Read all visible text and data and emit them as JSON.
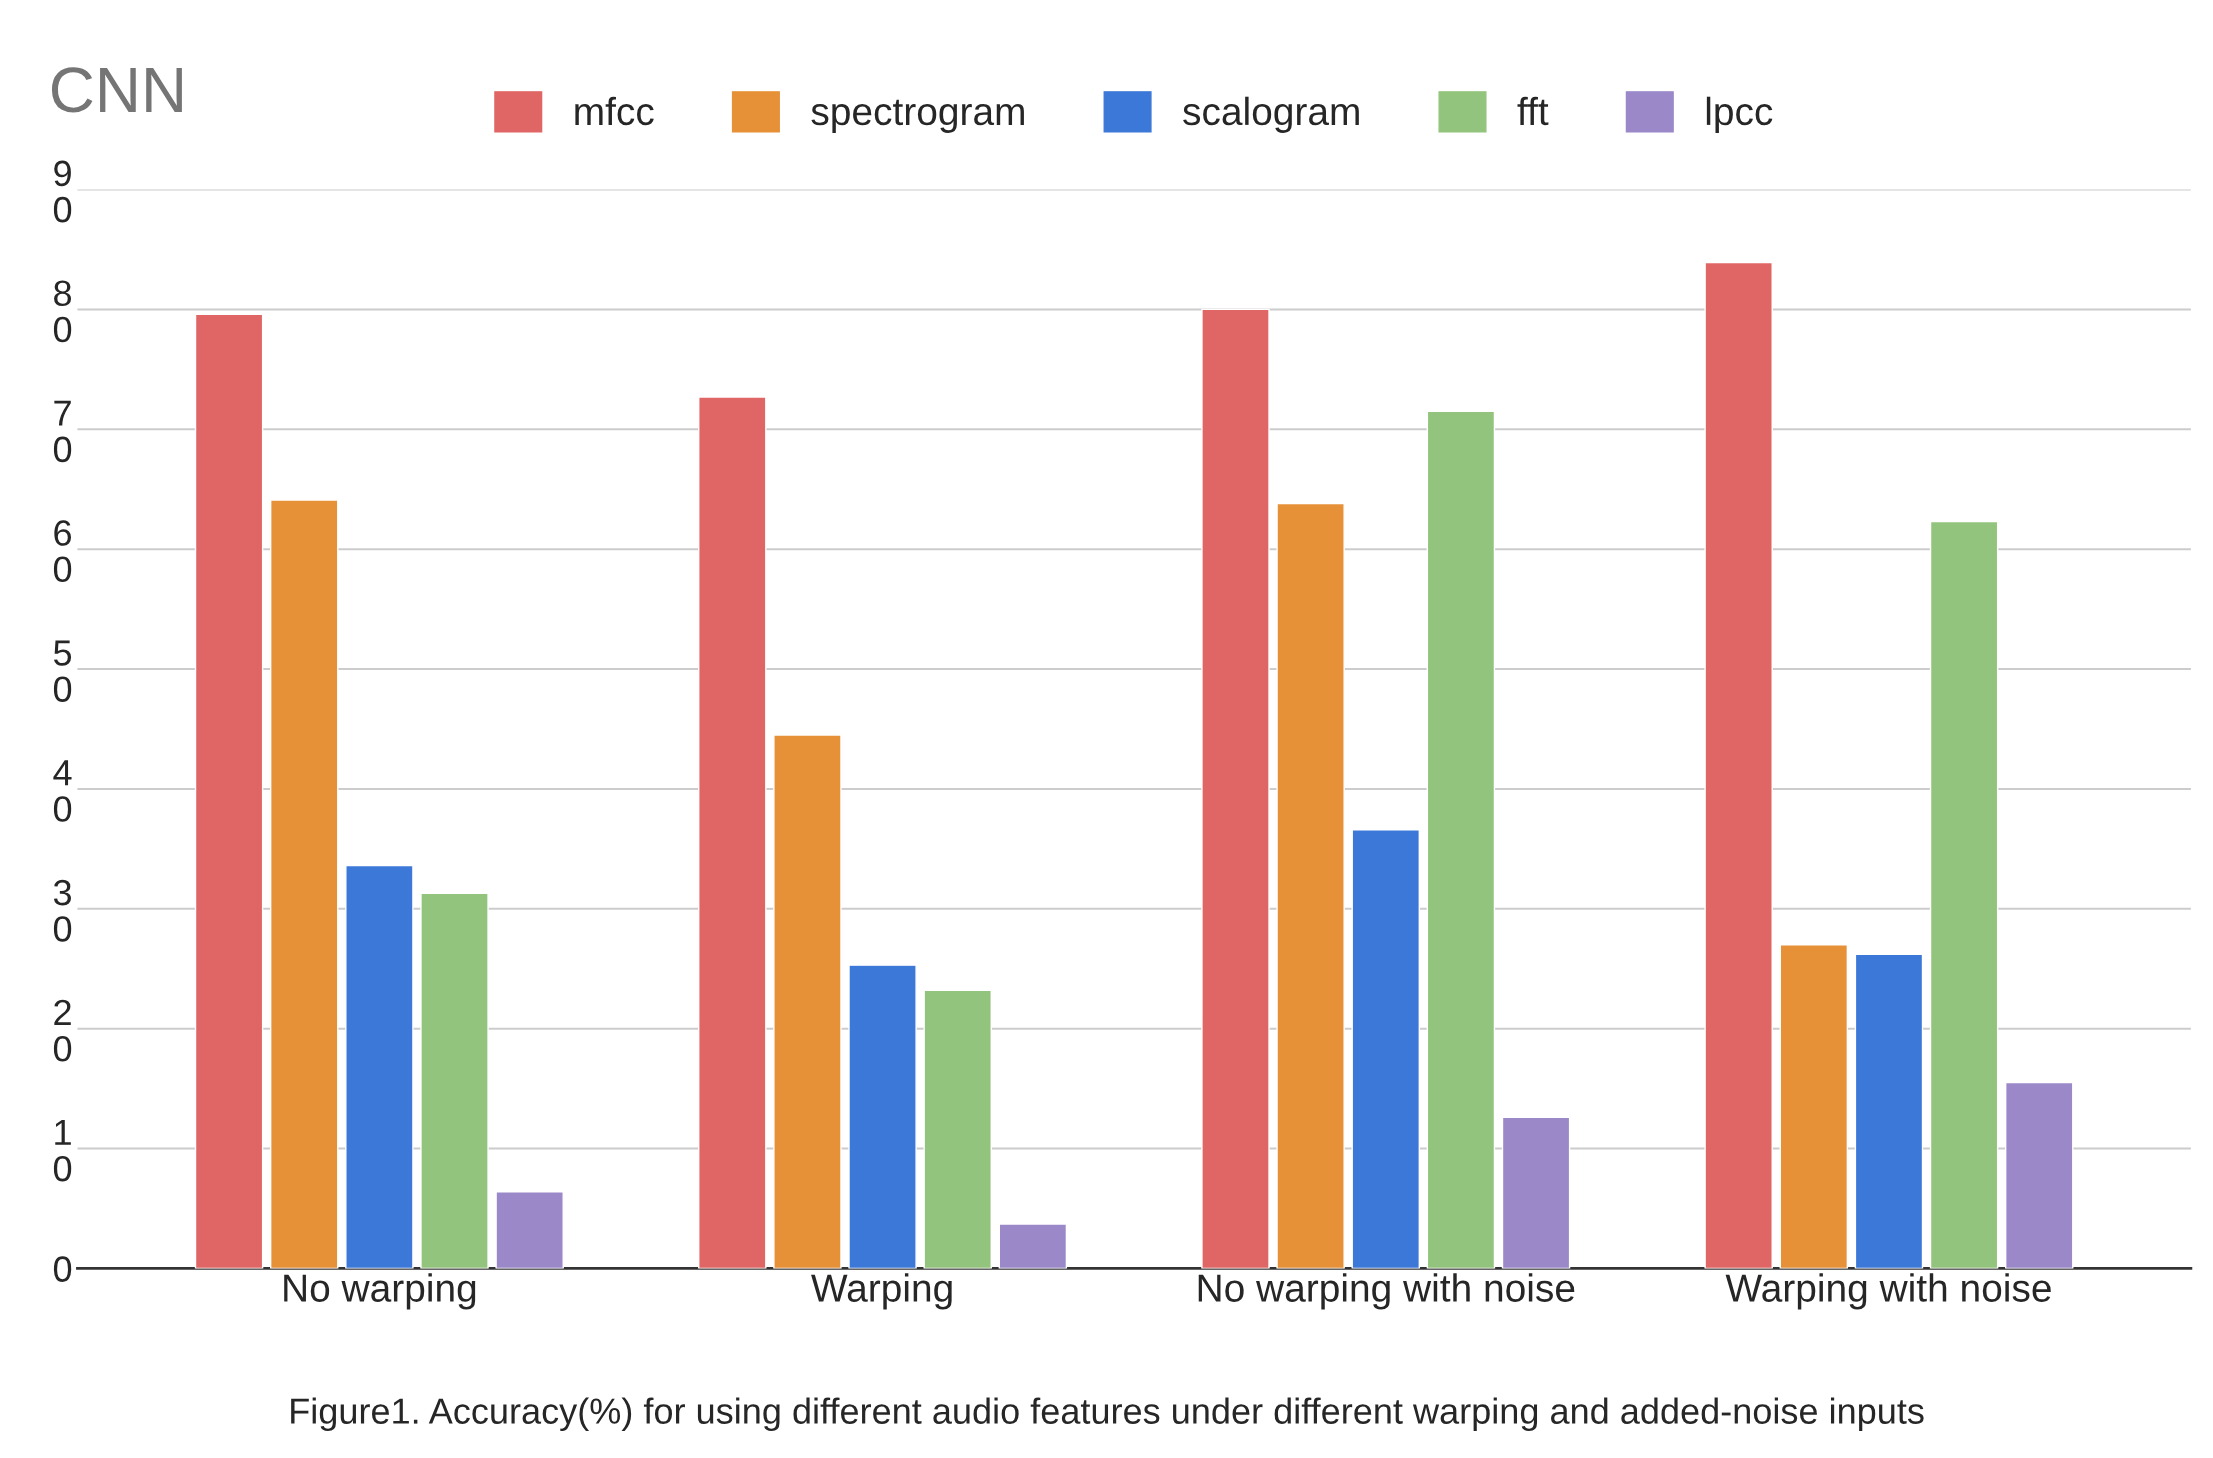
{
  "chart_data": {
    "type": "bar",
    "title": "CNN",
    "categories": [
      "No warping",
      "Warping",
      "No warping with noise",
      "Warping with noise"
    ],
    "series": [
      {
        "name": "mfcc",
        "color": "#e06666",
        "values": [
          79.6,
          72.7,
          80.0,
          83.9
        ]
      },
      {
        "name": "spectrogram",
        "color": "#e69138",
        "values": [
          64.1,
          44.5,
          63.8,
          27.0
        ]
      },
      {
        "name": "scalogram",
        "color": "#3c78d8",
        "values": [
          33.6,
          25.3,
          36.6,
          26.2
        ]
      },
      {
        "name": "fft",
        "color": "#93c47d",
        "values": [
          31.3,
          23.2,
          71.5,
          62.3
        ]
      },
      {
        "name": "lpcc",
        "color": "#9a88c9",
        "values": [
          6.4,
          3.7,
          12.6,
          15.5
        ]
      }
    ],
    "ylim": [
      0,
      90
    ],
    "yticks": [
      0,
      10,
      20,
      30,
      40,
      50,
      60,
      70,
      80,
      90
    ],
    "grid": "y",
    "legend": "top",
    "annotations": [
      "Figure1. Accuracy(%) for using different audio features under different warping and added-noise inputs"
    ]
  }
}
